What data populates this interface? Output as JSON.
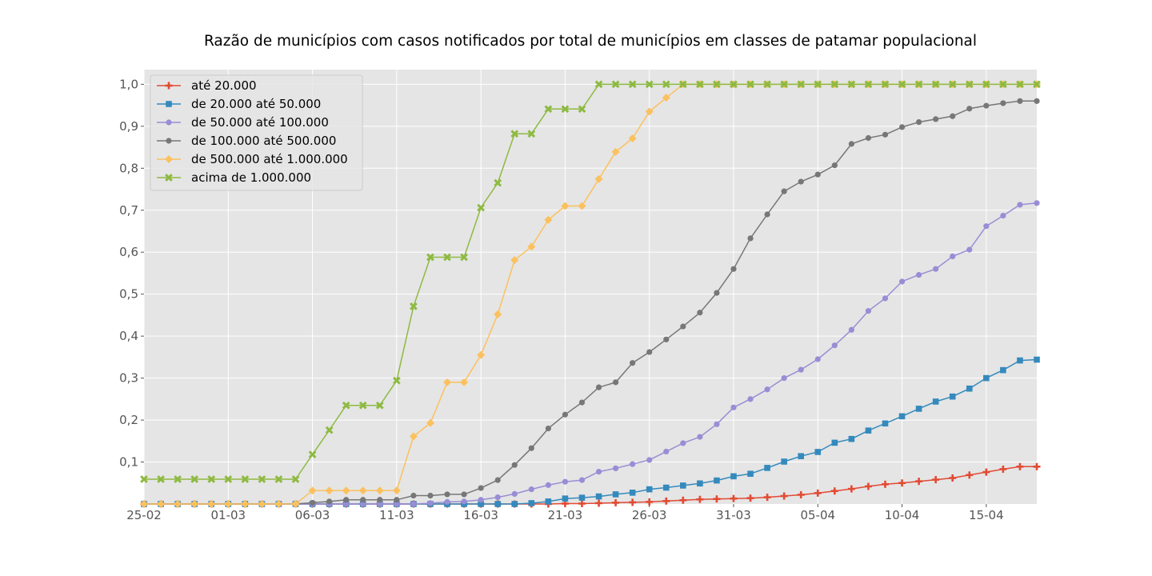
{
  "chart_data": {
    "type": "line",
    "title": "Razão de municípios com casos notificados por total de municípios em classes de patamar populacional",
    "xlabel": "",
    "ylabel": "",
    "x": [
      "25-02",
      "26-02",
      "27-02",
      "28-02",
      "29-02",
      "01-03",
      "02-03",
      "03-03",
      "04-03",
      "05-03",
      "06-03",
      "07-03",
      "08-03",
      "09-03",
      "10-03",
      "11-03",
      "12-03",
      "13-03",
      "14-03",
      "15-03",
      "16-03",
      "17-03",
      "18-03",
      "19-03",
      "20-03",
      "21-03",
      "22-03",
      "23-03",
      "24-03",
      "25-03",
      "26-03",
      "27-03",
      "28-03",
      "29-03",
      "30-03",
      "31-03",
      "01-04",
      "02-04",
      "03-04",
      "04-04",
      "05-04",
      "06-04",
      "07-04",
      "08-04",
      "09-04",
      "10-04",
      "11-04",
      "12-04",
      "13-04",
      "14-04",
      "15-04",
      "16-04",
      "17-04",
      "18-04"
    ],
    "x_tick_labels": [
      "25-02",
      "01-03",
      "06-03",
      "11-03",
      "16-03",
      "21-03",
      "26-03",
      "31-03",
      "05-04",
      "10-04",
      "15-04"
    ],
    "y_tick_labels": [
      "0,1",
      "0,2",
      "0,3",
      "0,4",
      "0,5",
      "0,6",
      "0,7",
      "0,8",
      "0,9",
      "1,0"
    ],
    "ylim": [
      0.0,
      1.035
    ],
    "grid": true,
    "legend_position": "top-left",
    "series": [
      {
        "name": "até 20.000",
        "color": "#e24a33",
        "marker": "plus",
        "values": [
          0,
          0,
          0,
          0,
          0,
          0,
          0,
          0,
          0,
          0,
          0,
          0,
          0,
          0,
          0,
          0,
          0,
          0,
          0,
          0,
          0,
          0,
          0,
          0,
          0,
          0.001,
          0.001,
          0.002,
          0.003,
          0.004,
          0.005,
          0.007,
          0.009,
          0.011,
          0.012,
          0.013,
          0.014,
          0.016,
          0.019,
          0.022,
          0.026,
          0.031,
          0.036,
          0.042,
          0.047,
          0.05,
          0.054,
          0.058,
          0.062,
          0.069,
          0.076,
          0.083,
          0.089,
          0.089
        ]
      },
      {
        "name": "de 20.000 até 50.000",
        "color": "#348abd",
        "marker": "square",
        "values": [
          0,
          0,
          0,
          0,
          0,
          0,
          0,
          0,
          0,
          0,
          0,
          0,
          0,
          0,
          0,
          0,
          0,
          0,
          0,
          0,
          0,
          0,
          0,
          0.002,
          0.006,
          0.013,
          0.015,
          0.018,
          0.023,
          0.027,
          0.035,
          0.039,
          0.044,
          0.049,
          0.056,
          0.066,
          0.072,
          0.086,
          0.101,
          0.114,
          0.124,
          0.146,
          0.155,
          0.175,
          0.192,
          0.209,
          0.227,
          0.244,
          0.256,
          0.275,
          0.3,
          0.319,
          0.342,
          0.344
        ]
      },
      {
        "name": "de 50.000 até 100.000",
        "color": "#988ed5",
        "marker": "circle",
        "values": [
          0,
          0,
          0,
          0,
          0,
          0,
          0,
          0,
          0,
          0,
          0,
          0,
          0,
          0,
          0,
          0,
          0,
          0.002,
          0.005,
          0.006,
          0.01,
          0.016,
          0.024,
          0.035,
          0.045,
          0.053,
          0.057,
          0.077,
          0.085,
          0.095,
          0.105,
          0.125,
          0.145,
          0.16,
          0.19,
          0.23,
          0.25,
          0.273,
          0.3,
          0.32,
          0.345,
          0.378,
          0.415,
          0.46,
          0.49,
          0.53,
          0.546,
          0.56,
          0.59,
          0.606,
          0.662,
          0.687,
          0.713,
          0.717
        ]
      },
      {
        "name": "de 100.000 até 500.000",
        "color": "#777777",
        "marker": "circle",
        "values": [
          0,
          0,
          0,
          0,
          0,
          0,
          0,
          0,
          0,
          0,
          0.003,
          0.006,
          0.01,
          0.01,
          0.01,
          0.01,
          0.02,
          0.02,
          0.023,
          0.023,
          0.038,
          0.057,
          0.093,
          0.133,
          0.18,
          0.213,
          0.242,
          0.278,
          0.29,
          0.336,
          0.362,
          0.392,
          0.423,
          0.456,
          0.503,
          0.56,
          0.633,
          0.69,
          0.745,
          0.768,
          0.785,
          0.807,
          0.858,
          0.872,
          0.88,
          0.898,
          0.91,
          0.917,
          0.924,
          0.942,
          0.949,
          0.955,
          0.96,
          0.96
        ]
      },
      {
        "name": "de 500.000 até 1.000.000",
        "color": "#fbc15e",
        "marker": "diamond",
        "values": [
          0,
          0,
          0,
          0,
          0,
          0,
          0,
          0,
          0,
          0,
          0.032,
          0.032,
          0.032,
          0.032,
          0.032,
          0.032,
          0.161,
          0.193,
          0.29,
          0.29,
          0.355,
          0.452,
          0.581,
          0.613,
          0.677,
          0.71,
          0.71,
          0.774,
          0.839,
          0.871,
          0.935,
          0.968,
          1.0,
          1.0,
          1.0,
          1.0,
          1.0,
          1.0,
          1.0,
          1.0,
          1.0,
          1.0,
          1.0,
          1.0,
          1.0,
          1.0,
          1.0,
          1.0,
          1.0,
          1.0,
          1.0,
          1.0,
          1.0,
          1.0
        ]
      },
      {
        "name": "acima de 1.000.000",
        "color": "#8eba42",
        "marker": "x",
        "values": [
          0.059,
          0.059,
          0.059,
          0.059,
          0.059,
          0.059,
          0.059,
          0.059,
          0.059,
          0.059,
          0.118,
          0.176,
          0.235,
          0.235,
          0.235,
          0.294,
          0.471,
          0.588,
          0.588,
          0.588,
          0.706,
          0.765,
          0.882,
          0.882,
          0.941,
          0.941,
          0.941,
          1.0,
          1.0,
          1.0,
          1.0,
          1.0,
          1.0,
          1.0,
          1.0,
          1.0,
          1.0,
          1.0,
          1.0,
          1.0,
          1.0,
          1.0,
          1.0,
          1.0,
          1.0,
          1.0,
          1.0,
          1.0,
          1.0,
          1.0,
          1.0,
          1.0,
          1.0,
          1.0
        ]
      }
    ]
  }
}
